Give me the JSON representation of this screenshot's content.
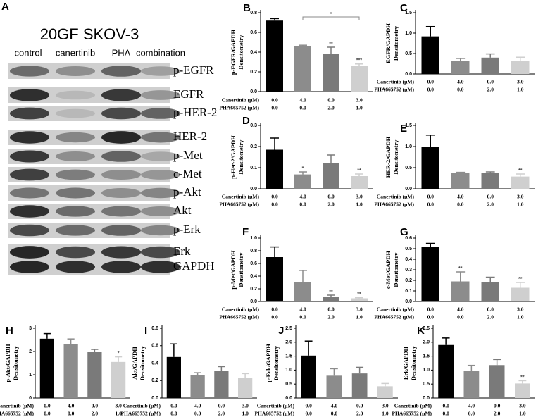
{
  "panel_a": {
    "label": "A",
    "title": "20GF SKOV-3",
    "lanes": [
      "control",
      "canertinib",
      "PHA",
      "combination"
    ],
    "proteins": [
      "p-EGFR",
      "EGFR",
      "p-HER-2",
      "HER-2",
      "p-Met",
      "c-Met",
      "p-Akt",
      "Akt",
      "p-Erk",
      "Erk",
      "GAPDH"
    ]
  },
  "conditions": [
    {
      "name": "Canertinib (μM)",
      "labels": [
        "0.0",
        "4.0",
        "0.0",
        "3.0"
      ]
    },
    {
      "name": "PHA665752 (μM)",
      "labels": [
        "0.0",
        "0.0",
        "2.0",
        "1.0"
      ]
    }
  ],
  "chart_data": [
    {
      "type": "bar",
      "panel": "B",
      "ylabel": [
        "p-EGFR/GAPDH",
        "Densitometry"
      ],
      "colors": [
        "#000000",
        "#8c8c8c",
        "#7a7a7a",
        "#cfcfcf"
      ],
      "values": [
        0.72,
        0.46,
        0.38,
        0.26
      ],
      "errors": [
        0.02,
        0.01,
        0.07,
        0.02
      ],
      "significance": [
        null,
        null,
        "**",
        "***"
      ],
      "bracket": "*",
      "ylim": [
        0,
        0.8
      ],
      "yticks": [
        {
          "value": 0,
          "label": "0.0"
        },
        {
          "value": 0.2,
          "label": "0.2"
        },
        {
          "value": 0.4,
          "label": "0.4"
        },
        {
          "value": 0.6,
          "label": "0.6"
        },
        {
          "value": 0.8,
          "label": "0.8"
        }
      ]
    },
    {
      "type": "bar",
      "panel": "C",
      "ylabel": [
        "EGFR/GAPDH",
        "Densitometry"
      ],
      "colors": [
        "#000000",
        "#8c8c8c",
        "#7a7a7a",
        "#cfcfcf"
      ],
      "values": [
        0.92,
        0.32,
        0.4,
        0.32
      ],
      "errors": [
        0.24,
        0.06,
        0.09,
        0.09
      ],
      "significance": [
        null,
        null,
        null,
        null
      ],
      "ylim": [
        0,
        1.5
      ],
      "yticks": [
        {
          "value": 0,
          "label": "0.0"
        },
        {
          "value": 0.5,
          "label": "0.5"
        },
        {
          "value": 1,
          "label": "1.0"
        },
        {
          "value": 1.5,
          "label": "1.5"
        }
      ]
    },
    {
      "type": "bar",
      "panel": "D",
      "ylabel": [
        "p-Her-2/GAPDH",
        "Densitometry"
      ],
      "colors": [
        "#000000",
        "#8c8c8c",
        "#7a7a7a",
        "#cfcfcf"
      ],
      "values": [
        0.185,
        0.068,
        0.12,
        0.06
      ],
      "errors": [
        0.055,
        0.012,
        0.04,
        0.01
      ],
      "significance": [
        null,
        "*",
        null,
        "**"
      ],
      "ylim": [
        0,
        0.3
      ],
      "yticks": [
        {
          "value": 0,
          "label": "0.0"
        },
        {
          "value": 0.1,
          "label": "0.1"
        },
        {
          "value": 0.2,
          "label": "0.2"
        },
        {
          "value": 0.3,
          "label": "0.3"
        }
      ]
    },
    {
      "type": "bar",
      "panel": "E",
      "ylabel": [
        "HER-2/GAPDH",
        "Densitometry"
      ],
      "colors": [
        "#000000",
        "#8c8c8c",
        "#7a7a7a",
        "#cfcfcf"
      ],
      "values": [
        1.0,
        0.37,
        0.37,
        0.29
      ],
      "errors": [
        0.27,
        0.02,
        0.03,
        0.06
      ],
      "significance": [
        null,
        null,
        null,
        "**"
      ],
      "ylim": [
        0,
        1.5
      ],
      "yticks": [
        {
          "value": 0,
          "label": "0.0"
        },
        {
          "value": 0.5,
          "label": "0.5"
        },
        {
          "value": 1,
          "label": "1.0"
        },
        {
          "value": 1.5,
          "label": "1.5"
        }
      ]
    },
    {
      "type": "bar",
      "panel": "F",
      "ylabel": [
        "p-Met/GAPDH",
        "Densitometry"
      ],
      "colors": [
        "#000000",
        "#8c8c8c",
        "#7a7a7a",
        "#cfcfcf"
      ],
      "values": [
        0.7,
        0.31,
        0.07,
        0.05
      ],
      "errors": [
        0.16,
        0.18,
        0.03,
        0.01
      ],
      "significance": [
        null,
        null,
        "**",
        "**"
      ],
      "ylim": [
        0,
        1.0
      ],
      "yticks": [
        {
          "value": 0,
          "label": "0.0"
        },
        {
          "value": 0.2,
          "label": "0.2"
        },
        {
          "value": 0.4,
          "label": "0.4"
        },
        {
          "value": 0.6,
          "label": "0.6"
        },
        {
          "value": 0.8,
          "label": "0.8"
        },
        {
          "value": 1,
          "label": "1.0"
        }
      ]
    },
    {
      "type": "bar",
      "panel": "G",
      "ylabel": [
        "c-Met/GAPDH",
        "Densitometry"
      ],
      "colors": [
        "#000000",
        "#8c8c8c",
        "#7a7a7a",
        "#cfcfcf"
      ],
      "values": [
        0.52,
        0.19,
        0.18,
        0.13
      ],
      "errors": [
        0.03,
        0.09,
        0.05,
        0.05
      ],
      "significance": [
        null,
        "**",
        null,
        "**"
      ],
      "ylim": [
        0,
        0.6
      ],
      "yticks": [
        {
          "value": 0,
          "label": "0.0"
        },
        {
          "value": 0.1,
          "label": "0.1"
        },
        {
          "value": 0.2,
          "label": "0.2"
        },
        {
          "value": 0.3,
          "label": "0.3"
        },
        {
          "value": 0.4,
          "label": "0.4"
        },
        {
          "value": 0.5,
          "label": "0.5"
        },
        {
          "value": 0.6,
          "label": "0.6"
        }
      ]
    },
    {
      "type": "bar",
      "panel": "H",
      "ylabel": [
        "p-Akt/GAPDH",
        "Densitometry"
      ],
      "colors": [
        "#000000",
        "#8c8c8c",
        "#7a7a7a",
        "#cfcfcf"
      ],
      "values": [
        2.55,
        2.32,
        1.97,
        1.55
      ],
      "errors": [
        0.22,
        0.22,
        0.12,
        0.22
      ],
      "significance": [
        null,
        null,
        null,
        "*"
      ],
      "ylim": [
        0,
        3
      ],
      "yticks": [
        0,
        1,
        2,
        3
      ]
    },
    {
      "type": "bar",
      "panel": "I",
      "ylabel": [
        "Akt/GAPDH",
        "Densitometry"
      ],
      "colors": [
        "#000000",
        "#8c8c8c",
        "#7a7a7a",
        "#cfcfcf"
      ],
      "values": [
        0.47,
        0.26,
        0.31,
        0.23
      ],
      "errors": [
        0.15,
        0.03,
        0.05,
        0.05
      ],
      "significance": [
        null,
        null,
        null,
        null
      ],
      "ylim": [
        0,
        0.8
      ],
      "yticks": [
        {
          "value": 0,
          "label": "0.0"
        },
        {
          "value": 0.2,
          "label": "0.2"
        },
        {
          "value": 0.4,
          "label": "0.4"
        },
        {
          "value": 0.6,
          "label": "0.6"
        },
        {
          "value": 0.8,
          "label": "0.8"
        }
      ]
    },
    {
      "type": "bar",
      "panel": "J",
      "ylabel": [
        "p-Erk/GAPDH",
        "Densitometry"
      ],
      "colors": [
        "#000000",
        "#8c8c8c",
        "#7a7a7a",
        "#cfcfcf"
      ],
      "values": [
        1.52,
        0.8,
        0.88,
        0.42
      ],
      "errors": [
        0.52,
        0.25,
        0.22,
        0.1
      ],
      "significance": [
        null,
        null,
        null,
        null
      ],
      "ylim": [
        0,
        2.5
      ],
      "yticks": [
        {
          "value": 0,
          "label": "0.0"
        },
        {
          "value": 0.5,
          "label": "0.5"
        },
        {
          "value": 1,
          "label": "1.0"
        },
        {
          "value": 1.5,
          "label": "1.5"
        },
        {
          "value": 2,
          "label": "2.0"
        },
        {
          "value": 2.5,
          "label": "2.5"
        }
      ]
    },
    {
      "type": "bar",
      "panel": "K",
      "ylabel": [
        "Erk/GAPDH",
        "Densitometry"
      ],
      "colors": [
        "#000000",
        "#8c8c8c",
        "#7a7a7a",
        "#cfcfcf"
      ],
      "values": [
        1.9,
        0.97,
        1.18,
        0.52
      ],
      "errors": [
        0.25,
        0.2,
        0.2,
        0.1
      ],
      "significance": [
        null,
        null,
        null,
        "**"
      ],
      "ylim": [
        0,
        2.5
      ],
      "yticks": [
        {
          "value": 0,
          "label": "0.0"
        },
        {
          "value": 0.5,
          "label": "0.5"
        },
        {
          "value": 1,
          "label": "1.0"
        },
        {
          "value": 1.5,
          "label": "1.5"
        },
        {
          "value": 2,
          "label": "2.0"
        },
        {
          "value": 2.5,
          "label": "2.5"
        }
      ]
    }
  ]
}
